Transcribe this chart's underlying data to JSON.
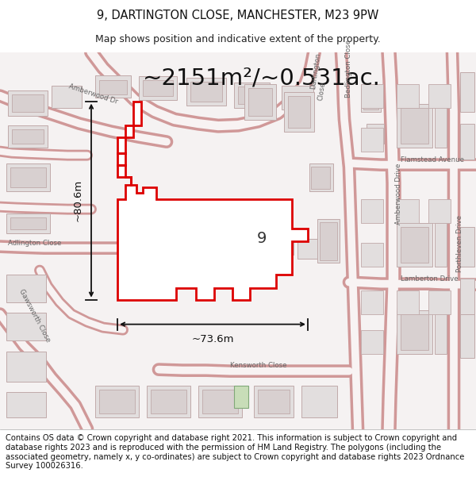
{
  "title_line1": "9, DARTINGTON CLOSE, MANCHESTER, M23 9PW",
  "title_line2": "Map shows position and indicative extent of the property.",
  "area_text": "~2151m²/~0.531ac.",
  "dim_width": "~73.6m",
  "dim_height": "~80.6m",
  "property_label": "9",
  "footer": "Contains OS data © Crown copyright and database right 2021. This information is subject to Crown copyright and database rights 2023 and is reproduced with the permission of HM Land Registry. The polygons (including the associated geometry, namely x, y co-ordinates) are subject to Crown copyright and database rights 2023 Ordnance Survey 100026316.",
  "map_bg": "#f7f4f4",
  "road_color": "#e8b0b0",
  "road_fill": "#f9f5f5",
  "building_fill": "#e8e4e4",
  "building_stroke": "#c8b0b0",
  "property_fill": "#ffffff",
  "property_stroke": "#dd0000",
  "green_fill": "#c8ddb8",
  "title_fontsize": 10.5,
  "subtitle_fontsize": 9,
  "area_fontsize": 21,
  "footer_fontsize": 7.2,
  "dim_fontsize": 9.5
}
